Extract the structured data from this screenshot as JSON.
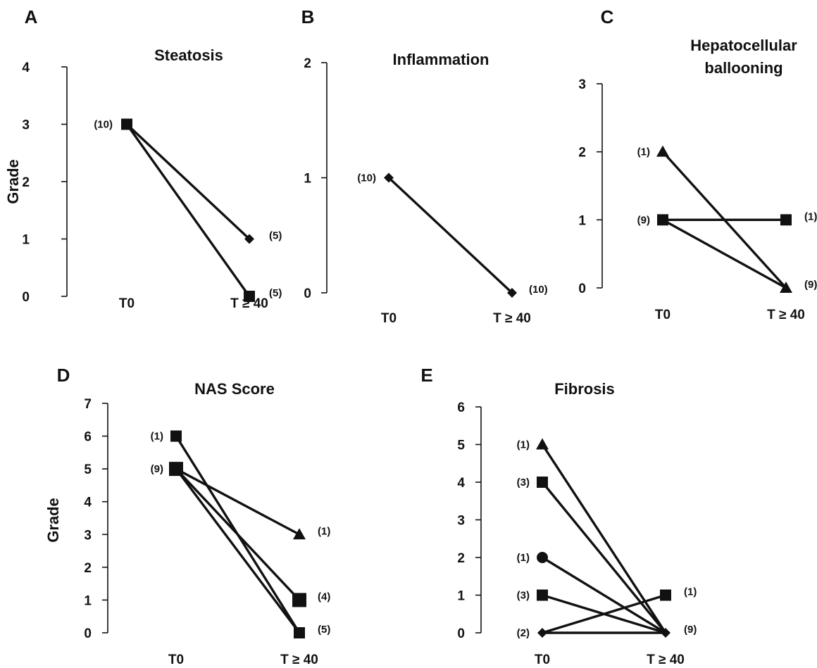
{
  "figure": {
    "panels": [
      {
        "letter": "A",
        "title": [
          "Steatosis"
        ],
        "ylabel": "Grade"
      },
      {
        "letter": "B",
        "title": [
          "Inflammation"
        ],
        "ylabel": ""
      },
      {
        "letter": "C",
        "title": [
          "Hepatocellular",
          "ballooning"
        ],
        "ylabel": ""
      },
      {
        "letter": "D",
        "title": [
          "NAS Score"
        ],
        "ylabel": "Grade"
      },
      {
        "letter": "E",
        "title": [
          "Fibrosis"
        ],
        "ylabel": ""
      }
    ]
  },
  "chart_data": [
    {
      "type": "line",
      "panel": "A",
      "title": "Steatosis",
      "ylabel": "Grade",
      "categories": [
        "T0",
        "T ≥ 40"
      ],
      "ylim": [
        0,
        4
      ],
      "yticks": [
        0,
        1,
        2,
        3,
        4
      ],
      "grid": false,
      "markers": [
        {
          "x": "T0",
          "y": 3,
          "shape": "square",
          "label": "(10)"
        },
        {
          "x": "T ≥ 40",
          "y": 1,
          "shape": "diamond",
          "label": "(5)"
        },
        {
          "x": "T ≥ 40",
          "y": 0,
          "shape": "square",
          "label": "(5)"
        }
      ],
      "series": [
        {
          "values": [
            3,
            1
          ]
        },
        {
          "values": [
            3,
            0
          ]
        }
      ]
    },
    {
      "type": "line",
      "panel": "B",
      "title": "Inflammation",
      "ylabel": "",
      "categories": [
        "T0",
        "T ≥ 40"
      ],
      "ylim": [
        0,
        2
      ],
      "yticks": [
        0,
        1,
        2
      ],
      "grid": false,
      "markers": [
        {
          "x": "T0",
          "y": 1,
          "shape": "diamond",
          "label": "(10)"
        },
        {
          "x": "T ≥ 40",
          "y": 0,
          "shape": "diamond",
          "label": "(10)"
        }
      ],
      "series": [
        {
          "values": [
            1,
            0
          ]
        }
      ]
    },
    {
      "type": "line",
      "panel": "C",
      "title": "Hepatocellular ballooning",
      "ylabel": "",
      "categories": [
        "T0",
        "T ≥ 40"
      ],
      "ylim": [
        0,
        3
      ],
      "yticks": [
        0,
        1,
        2,
        3
      ],
      "grid": false,
      "markers": [
        {
          "x": "T0",
          "y": 2,
          "shape": "triangle",
          "label": "(1)"
        },
        {
          "x": "T0",
          "y": 1,
          "shape": "square",
          "label": "(9)"
        },
        {
          "x": "T ≥ 40",
          "y": 1,
          "shape": "square",
          "label": "(1)"
        },
        {
          "x": "T ≥ 40",
          "y": 0,
          "shape": "triangle",
          "label": "(9)"
        }
      ],
      "series": [
        {
          "values": [
            2,
            0
          ]
        },
        {
          "values": [
            1,
            1
          ]
        },
        {
          "values": [
            1,
            0
          ]
        }
      ]
    },
    {
      "type": "line",
      "panel": "D",
      "title": "NAS Score",
      "ylabel": "Grade",
      "categories": [
        "T0",
        "T ≥ 40"
      ],
      "ylim": [
        0,
        7
      ],
      "yticks": [
        0,
        1,
        2,
        3,
        4,
        5,
        6,
        7
      ],
      "grid": false,
      "markers": [
        {
          "x": "T0",
          "y": 6,
          "shape": "square",
          "label": "(1)"
        },
        {
          "x": "T0",
          "y": 5,
          "shape": "square-large",
          "label": "(9)"
        },
        {
          "x": "T ≥ 40",
          "y": 3,
          "shape": "triangle",
          "label": "(1)"
        },
        {
          "x": "T ≥ 40",
          "y": 1,
          "shape": "square-large",
          "label": "(4)"
        },
        {
          "x": "T ≥ 40",
          "y": 0,
          "shape": "square",
          "label": "(5)"
        }
      ],
      "series": [
        {
          "values": [
            6,
            0
          ]
        },
        {
          "values": [
            5,
            3
          ]
        },
        {
          "values": [
            5,
            1
          ]
        },
        {
          "values": [
            5,
            0
          ]
        }
      ]
    },
    {
      "type": "line",
      "panel": "E",
      "title": "Fibrosis",
      "ylabel": "",
      "categories": [
        "T0",
        "T ≥ 40"
      ],
      "ylim": [
        0,
        6
      ],
      "yticks": [
        0,
        1,
        2,
        3,
        4,
        5,
        6
      ],
      "grid": false,
      "markers": [
        {
          "x": "T0",
          "y": 5,
          "shape": "triangle",
          "label": "(1)"
        },
        {
          "x": "T0",
          "y": 4,
          "shape": "square",
          "label": "(3)"
        },
        {
          "x": "T0",
          "y": 2,
          "shape": "circle",
          "label": "(1)"
        },
        {
          "x": "T0",
          "y": 1,
          "shape": "square",
          "label": "(3)"
        },
        {
          "x": "T0",
          "y": 0,
          "shape": "diamond",
          "label": "(2)"
        },
        {
          "x": "T ≥ 40",
          "y": 1,
          "shape": "square",
          "label": "(1)"
        },
        {
          "x": "T ≥ 40",
          "y": 0,
          "shape": "diamond",
          "label": "(9)"
        }
      ],
      "series": [
        {
          "values": [
            5,
            0
          ]
        },
        {
          "values": [
            4,
            0
          ]
        },
        {
          "values": [
            2,
            0
          ]
        },
        {
          "values": [
            1,
            0
          ]
        },
        {
          "values": [
            0,
            1
          ]
        },
        {
          "values": [
            0,
            0
          ]
        }
      ]
    }
  ]
}
